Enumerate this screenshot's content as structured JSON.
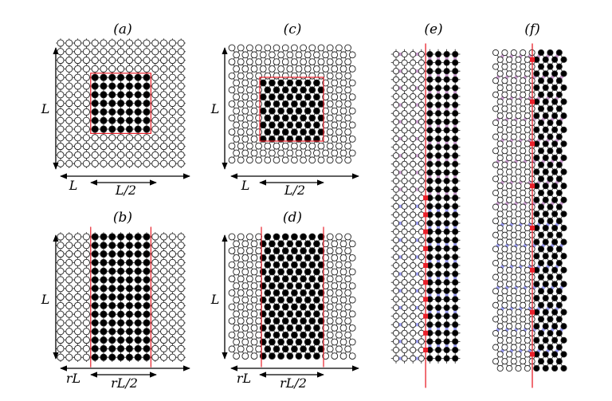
{
  "panels": [
    {
      "id": "a",
      "label": "(a)"
    },
    {
      "id": "b",
      "label": "(b)"
    },
    {
      "id": "c",
      "label": "(c)"
    },
    {
      "id": "d",
      "label": "(d)"
    },
    {
      "id": "e",
      "label": "(e)"
    },
    {
      "id": "f",
      "label": "(f)"
    }
  ],
  "labels": {
    "L_a": "L",
    "Lx_a": "L",
    "Lhalf_a": "L/2",
    "L_b": "L",
    "rL_b": "rL",
    "rLhalf_b": "rL/2",
    "L_c": "L",
    "Lx_c": "L",
    "Lhalf_c": "L/2",
    "L_d": "L",
    "rL_d": "rL",
    "rLhalf_d": "rL/2"
  },
  "colors": {
    "lattice": "#222222",
    "filled_site": "#000000",
    "empty_site": "#ffffff",
    "boundary": "#e8202a",
    "bond_violet": "#c79bcc",
    "bond_blue": "#9a9cf0",
    "cut_site": "#e8202a"
  }
}
